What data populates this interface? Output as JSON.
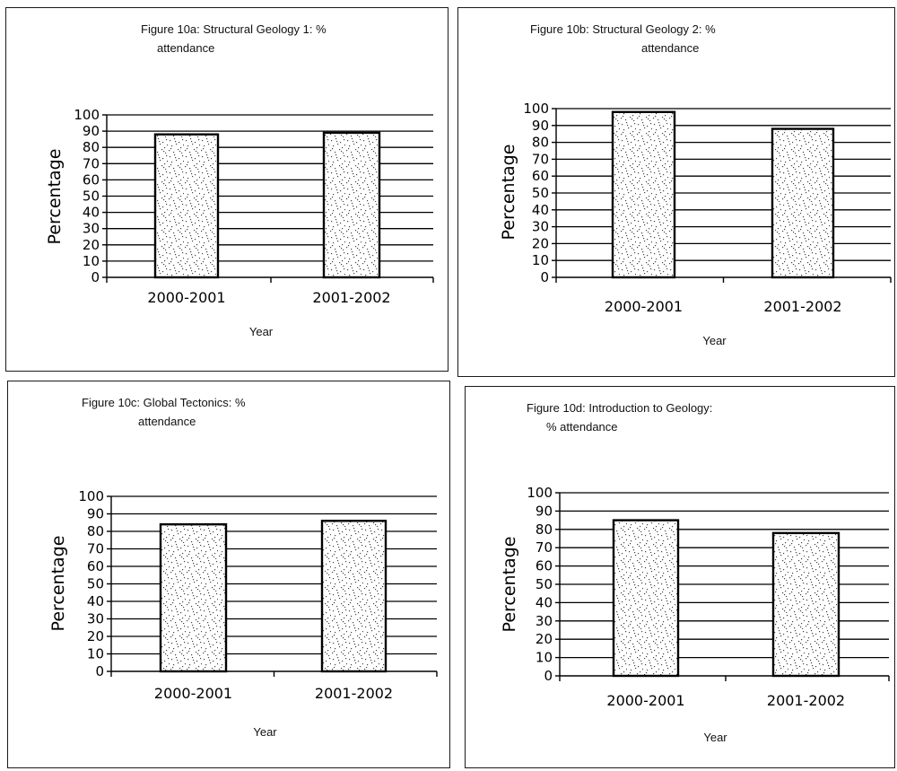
{
  "chart_data": [
    {
      "type": "bar",
      "title_lines": [
        "Figure 10a: Structural Geology 1: %",
        "attendance"
      ],
      "categories": [
        "2000-2001",
        "2001-2002"
      ],
      "values": [
        88,
        89
      ],
      "xlabel": "Year",
      "ylabel": "Percentage",
      "ylim": [
        0,
        100
      ],
      "yticks": [
        0,
        10,
        20,
        30,
        40,
        50,
        60,
        70,
        80,
        90,
        100
      ],
      "grid": true,
      "legend": "none"
    },
    {
      "type": "bar",
      "title_lines": [
        "Figure 10b: Structural Geology 2: %",
        "attendance"
      ],
      "categories": [
        "2000-2001",
        "2001-2002"
      ],
      "values": [
        98,
        88
      ],
      "xlabel": "Year",
      "ylabel": "Percentage",
      "ylim": [
        0,
        100
      ],
      "yticks": [
        0,
        10,
        20,
        30,
        40,
        50,
        60,
        70,
        80,
        90,
        100
      ],
      "grid": true,
      "legend": "none"
    },
    {
      "type": "bar",
      "title_lines": [
        "Figure 10c: Global Tectonics: %",
        "attendance"
      ],
      "categories": [
        "2000-2001",
        "2001-2002"
      ],
      "values": [
        84,
        86
      ],
      "xlabel": "Year",
      "ylabel": "Percentage",
      "ylim": [
        0,
        100
      ],
      "yticks": [
        0,
        10,
        20,
        30,
        40,
        50,
        60,
        70,
        80,
        90,
        100
      ],
      "grid": true,
      "legend": "none"
    },
    {
      "type": "bar",
      "title_lines": [
        "Figure 10d: Introduction to Geology:",
        "% attendance"
      ],
      "categories": [
        "2000-2001",
        "2001-2002"
      ],
      "values": [
        85,
        78
      ],
      "xlabel": "Year",
      "ylabel": "Percentage",
      "ylim": [
        0,
        100
      ],
      "yticks": [
        0,
        10,
        20,
        30,
        40,
        50,
        60,
        70,
        80,
        90,
        100
      ],
      "grid": true,
      "legend": "none"
    }
  ]
}
